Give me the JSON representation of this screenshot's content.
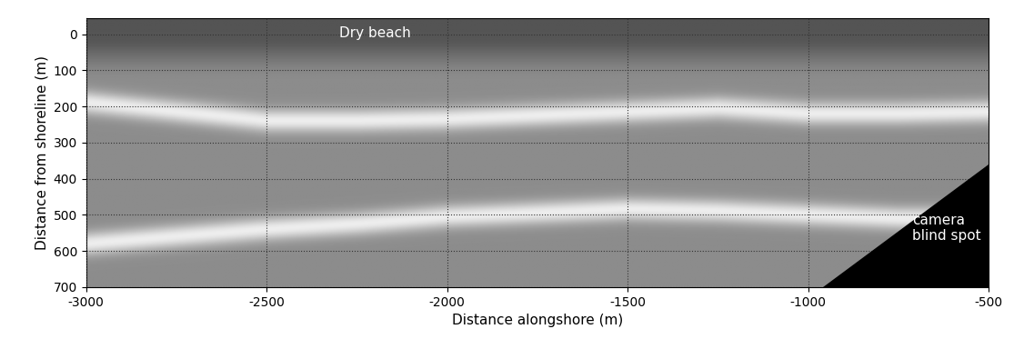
{
  "chart_data": {
    "type": "image",
    "xlabel": "Distance alongshore (m)",
    "ylabel": "Distance from shoreline (m)",
    "xlim": [
      -3000,
      -500
    ],
    "ylim": [
      700,
      -45
    ],
    "xticks": [
      -3000,
      -2500,
      -2000,
      -1500,
      -1000,
      -500
    ],
    "yticks": [
      0,
      100,
      200,
      300,
      400,
      500,
      600,
      700
    ],
    "grid": true,
    "color": "gray",
    "bands": [
      {
        "x": [
          -3000,
          -2750,
          -2500,
          -2250,
          -2000,
          -1750,
          -1500,
          -1250,
          -1000,
          -750,
          -500
        ],
        "values": [
          190,
          215,
          240,
          240,
          235,
          225,
          215,
          205,
          220,
          220,
          215
        ]
      },
      {
        "x": [
          -3000,
          -2750,
          -2500,
          -2250,
          -2000,
          -1750,
          -1500,
          -1250,
          -1000,
          -750,
          -500
        ],
        "values": [
          580,
          560,
          540,
          525,
          505,
          495,
          485,
          490,
          500,
          510,
          510
        ]
      }
    ],
    "blind_spot": {
      "x": [
        -960,
        -500,
        -500
      ],
      "y": [
        700,
        700,
        360
      ],
      "color": "black",
      "label": "camera\nblind spot"
    },
    "annotations": [
      {
        "text": "Dry beach"
      }
    ]
  }
}
